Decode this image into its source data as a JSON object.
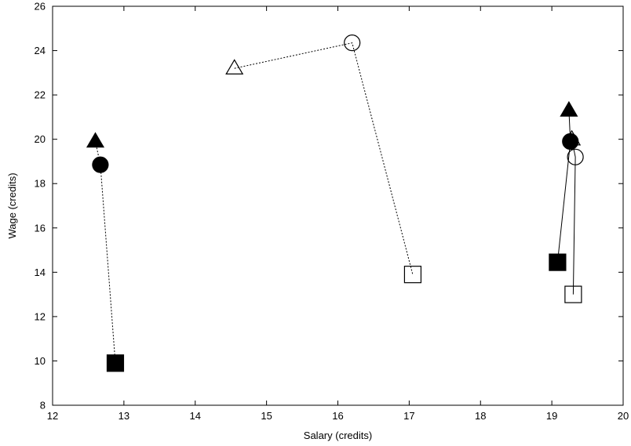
{
  "chart_data": {
    "type": "scatter",
    "title": "",
    "xlabel": "Salary (credits)",
    "ylabel": "Wage (credits)",
    "xlim": [
      12,
      20
    ],
    "ylim": [
      8,
      26
    ],
    "xticks": [
      12,
      13,
      14,
      15,
      16,
      17,
      18,
      19,
      20
    ],
    "yticks": [
      8,
      10,
      12,
      14,
      16,
      18,
      20,
      22,
      24,
      26
    ],
    "grid": false,
    "legend": "none",
    "paths": [
      {
        "line_style": "dotted",
        "points": [
          {
            "x": 12.6,
            "y": 19.9,
            "marker": "triangle",
            "fill": "filled"
          },
          {
            "x": 12.67,
            "y": 18.85,
            "marker": "circle",
            "fill": "filled"
          },
          {
            "x": 12.88,
            "y": 9.9,
            "marker": "square",
            "fill": "filled"
          }
        ]
      },
      {
        "line_style": "dotted",
        "points": [
          {
            "x": 14.55,
            "y": 23.2,
            "marker": "triangle",
            "fill": "open"
          },
          {
            "x": 16.2,
            "y": 24.35,
            "marker": "circle",
            "fill": "open"
          },
          {
            "x": 17.05,
            "y": 13.9,
            "marker": "square",
            "fill": "open"
          }
        ]
      },
      {
        "line_style": "solid",
        "points": [
          {
            "x": 19.24,
            "y": 21.3,
            "marker": "triangle",
            "fill": "filled"
          },
          {
            "x": 19.26,
            "y": 19.9,
            "marker": "circle",
            "fill": "filled"
          },
          {
            "x": 19.08,
            "y": 14.45,
            "marker": "square",
            "fill": "filled"
          }
        ]
      },
      {
        "line_style": "solid",
        "points": [
          {
            "x": 19.28,
            "y": 20.0,
            "marker": "triangle",
            "fill": "open"
          },
          {
            "x": 19.33,
            "y": 19.2,
            "marker": "circle",
            "fill": "open"
          },
          {
            "x": 19.3,
            "y": 13.0,
            "marker": "square",
            "fill": "open"
          }
        ]
      }
    ]
  }
}
